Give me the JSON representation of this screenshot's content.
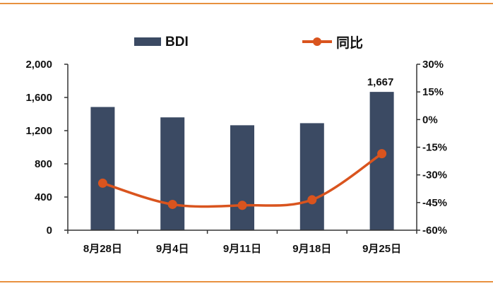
{
  "chart_data": {
    "type": "bar",
    "categories": [
      "8月28日",
      "9月4日",
      "9月11日",
      "9月18日",
      "9月25日"
    ],
    "series": [
      {
        "name": "BDI",
        "type": "bar",
        "axis": "left",
        "color": "#3b4a63",
        "values": [
          1485,
          1360,
          1265,
          1290,
          1667
        ],
        "data_labels": [
          "",
          "",
          "",
          "",
          "1,667"
        ]
      },
      {
        "name": "同比",
        "type": "line",
        "axis": "right",
        "color": "#d9541e",
        "values": [
          -34.5,
          -46.0,
          -46.5,
          -43.5,
          -18.5
        ]
      }
    ],
    "y_left": {
      "ylim": [
        0,
        2000
      ],
      "ticks": [
        0,
        400,
        800,
        1200,
        1600,
        2000
      ],
      "tick_labels": [
        "0",
        "400",
        "800",
        "1,200",
        "1,600",
        "2,000"
      ]
    },
    "y_right": {
      "ylim": [
        -60,
        30
      ],
      "ticks": [
        -60,
        -45,
        -30,
        -15,
        0,
        15,
        30
      ],
      "tick_labels": [
        "-60%",
        "-45%",
        "-30%",
        "-15%",
        "0%",
        "15%",
        "30%"
      ]
    },
    "legend_position": "top-center",
    "grid": false,
    "accent_rule_color": "#e8913f"
  }
}
